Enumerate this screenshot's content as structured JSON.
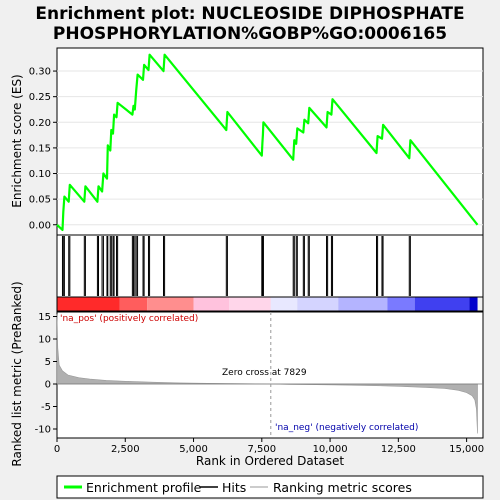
{
  "title_lines": [
    "Enrichment plot: NUCLEOSIDE DIPHOSPHATE",
    "PHOSPHORYLATION%GOBP%GO:0006165"
  ],
  "colors": {
    "es_line": "#00ff00",
    "hits": "#000000",
    "metric_fill": "#b0b0b0",
    "pos_label": "#cc0000",
    "neg_label": "#0000aa",
    "zero_line": "#999999"
  },
  "chart_data": [
    {
      "type": "line",
      "name": "enrichment-profile",
      "ylabel": "Enrichment score (ES)",
      "ylim": [
        -0.02,
        0.345
      ],
      "xlim": [
        0,
        15600
      ],
      "yticks": [
        0.0,
        0.05,
        0.1,
        0.15,
        0.2,
        0.25,
        0.3
      ],
      "ytick_labels": [
        "0.00",
        "0.05",
        "0.10",
        "0.15",
        "0.20",
        "0.25",
        "0.30"
      ],
      "x": [
        0,
        200,
        230,
        270,
        430,
        470,
        1000,
        1040,
        1480,
        1520,
        1650,
        1700,
        1830,
        1860,
        1950,
        1990,
        2050,
        2090,
        2180,
        2220,
        2760,
        2800,
        2850,
        2900,
        2950,
        3150,
        3190,
        3350,
        3390,
        3900,
        3940,
        6200,
        6240,
        7500,
        7520,
        7540,
        7560,
        8650,
        8690,
        8760,
        8800,
        9020,
        9060,
        9200,
        9240,
        9870,
        9910,
        10050,
        10090,
        11700,
        11740,
        11900,
        11940,
        12900,
        12940,
        15400
      ],
      "y": [
        0.0,
        -0.01,
        0.025,
        0.055,
        0.045,
        0.078,
        0.045,
        0.075,
        0.045,
        0.075,
        0.065,
        0.1,
        0.09,
        0.155,
        0.145,
        0.185,
        0.178,
        0.215,
        0.21,
        0.238,
        0.215,
        0.232,
        0.225,
        0.262,
        0.293,
        0.283,
        0.312,
        0.302,
        0.332,
        0.3,
        0.332,
        0.185,
        0.22,
        0.135,
        0.16,
        0.175,
        0.2,
        0.127,
        0.165,
        0.158,
        0.188,
        0.18,
        0.205,
        0.198,
        0.228,
        0.19,
        0.22,
        0.215,
        0.245,
        0.14,
        0.173,
        0.168,
        0.195,
        0.13,
        0.165,
        0.0
      ]
    },
    {
      "type": "hits",
      "name": "hits",
      "xlim": [
        0,
        15600
      ],
      "positions": [
        200,
        230,
        270,
        430,
        470,
        1000,
        1040,
        1480,
        1520,
        1650,
        1700,
        1830,
        1860,
        1950,
        1990,
        2050,
        2090,
        2180,
        2220,
        2760,
        2800,
        2850,
        2900,
        2950,
        3150,
        3190,
        3350,
        3390,
        3900,
        3940,
        6200,
        6240,
        7500,
        7520,
        7540,
        7560,
        8650,
        8690,
        8760,
        8800,
        9020,
        9060,
        9200,
        9240,
        9870,
        9910,
        10050,
        10090,
        11700,
        11740,
        11900,
        11940,
        12900,
        12940
      ]
    },
    {
      "type": "area",
      "name": "ranked-list-metric",
      "xlabel": "Rank in Ordered Dataset",
      "ylabel": "Ranked list metric (PreRanked)",
      "xlim": [
        0,
        15600
      ],
      "ylim": [
        -12,
        16
      ],
      "xticks": [
        0,
        2500,
        5000,
        7500,
        10000,
        12500,
        15000
      ],
      "xtick_labels": [
        "0",
        "2,500",
        "5,000",
        "7,500",
        "10,000",
        "12,500",
        "15,000"
      ],
      "yticks": [
        -10,
        -5,
        0,
        5,
        10,
        15
      ],
      "ytick_labels": [
        "-10",
        "-5",
        "0",
        "5",
        "10",
        "15"
      ],
      "x": [
        0,
        30,
        80,
        200,
        400,
        800,
        1200,
        1800,
        2500,
        3500,
        4500,
        5500,
        6500,
        7500,
        7829,
        8500,
        9500,
        10500,
        11500,
        12500,
        13500,
        14200,
        14700,
        15000,
        15200,
        15300,
        15360,
        15400
      ],
      "y": [
        15.5,
        8,
        4.2,
        2.9,
        2.0,
        1.4,
        1.1,
        0.8,
        0.6,
        0.4,
        0.25,
        0.15,
        0.08,
        0.02,
        0,
        -0.08,
        -0.15,
        -0.25,
        -0.35,
        -0.5,
        -0.75,
        -1.0,
        -1.4,
        -1.9,
        -2.6,
        -3.5,
        -5.5,
        -11.0
      ],
      "zero_cross_rank": 7829,
      "annotations": {
        "zero_cross": "Zero cross at 7829",
        "pos": "'na_pos' (positively correlated)",
        "neg": "'na_neg' (negatively correlated)"
      }
    }
  ],
  "legend": {
    "items": [
      {
        "label": "Enrichment profile",
        "kind": "line-green"
      },
      {
        "label": "Hits",
        "kind": "line-black"
      },
      {
        "label": "Ranking metric scores",
        "kind": "line-gray"
      }
    ]
  }
}
